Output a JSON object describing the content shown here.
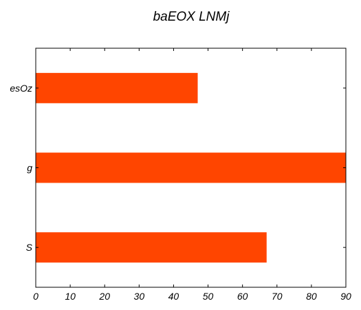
{
  "chart_data": {
    "type": "bar",
    "orientation": "horizontal",
    "title": "baEOX LNMj",
    "xlabel": "",
    "ylabel": "",
    "categories": [
      "S",
      "g",
      "esOz"
    ],
    "values": [
      67,
      90,
      47
    ],
    "xlim": [
      0,
      90
    ],
    "xticks": [
      0,
      10,
      20,
      30,
      40,
      50,
      60,
      70,
      80,
      90
    ],
    "grid": false,
    "bar_color": "#ff4500"
  }
}
